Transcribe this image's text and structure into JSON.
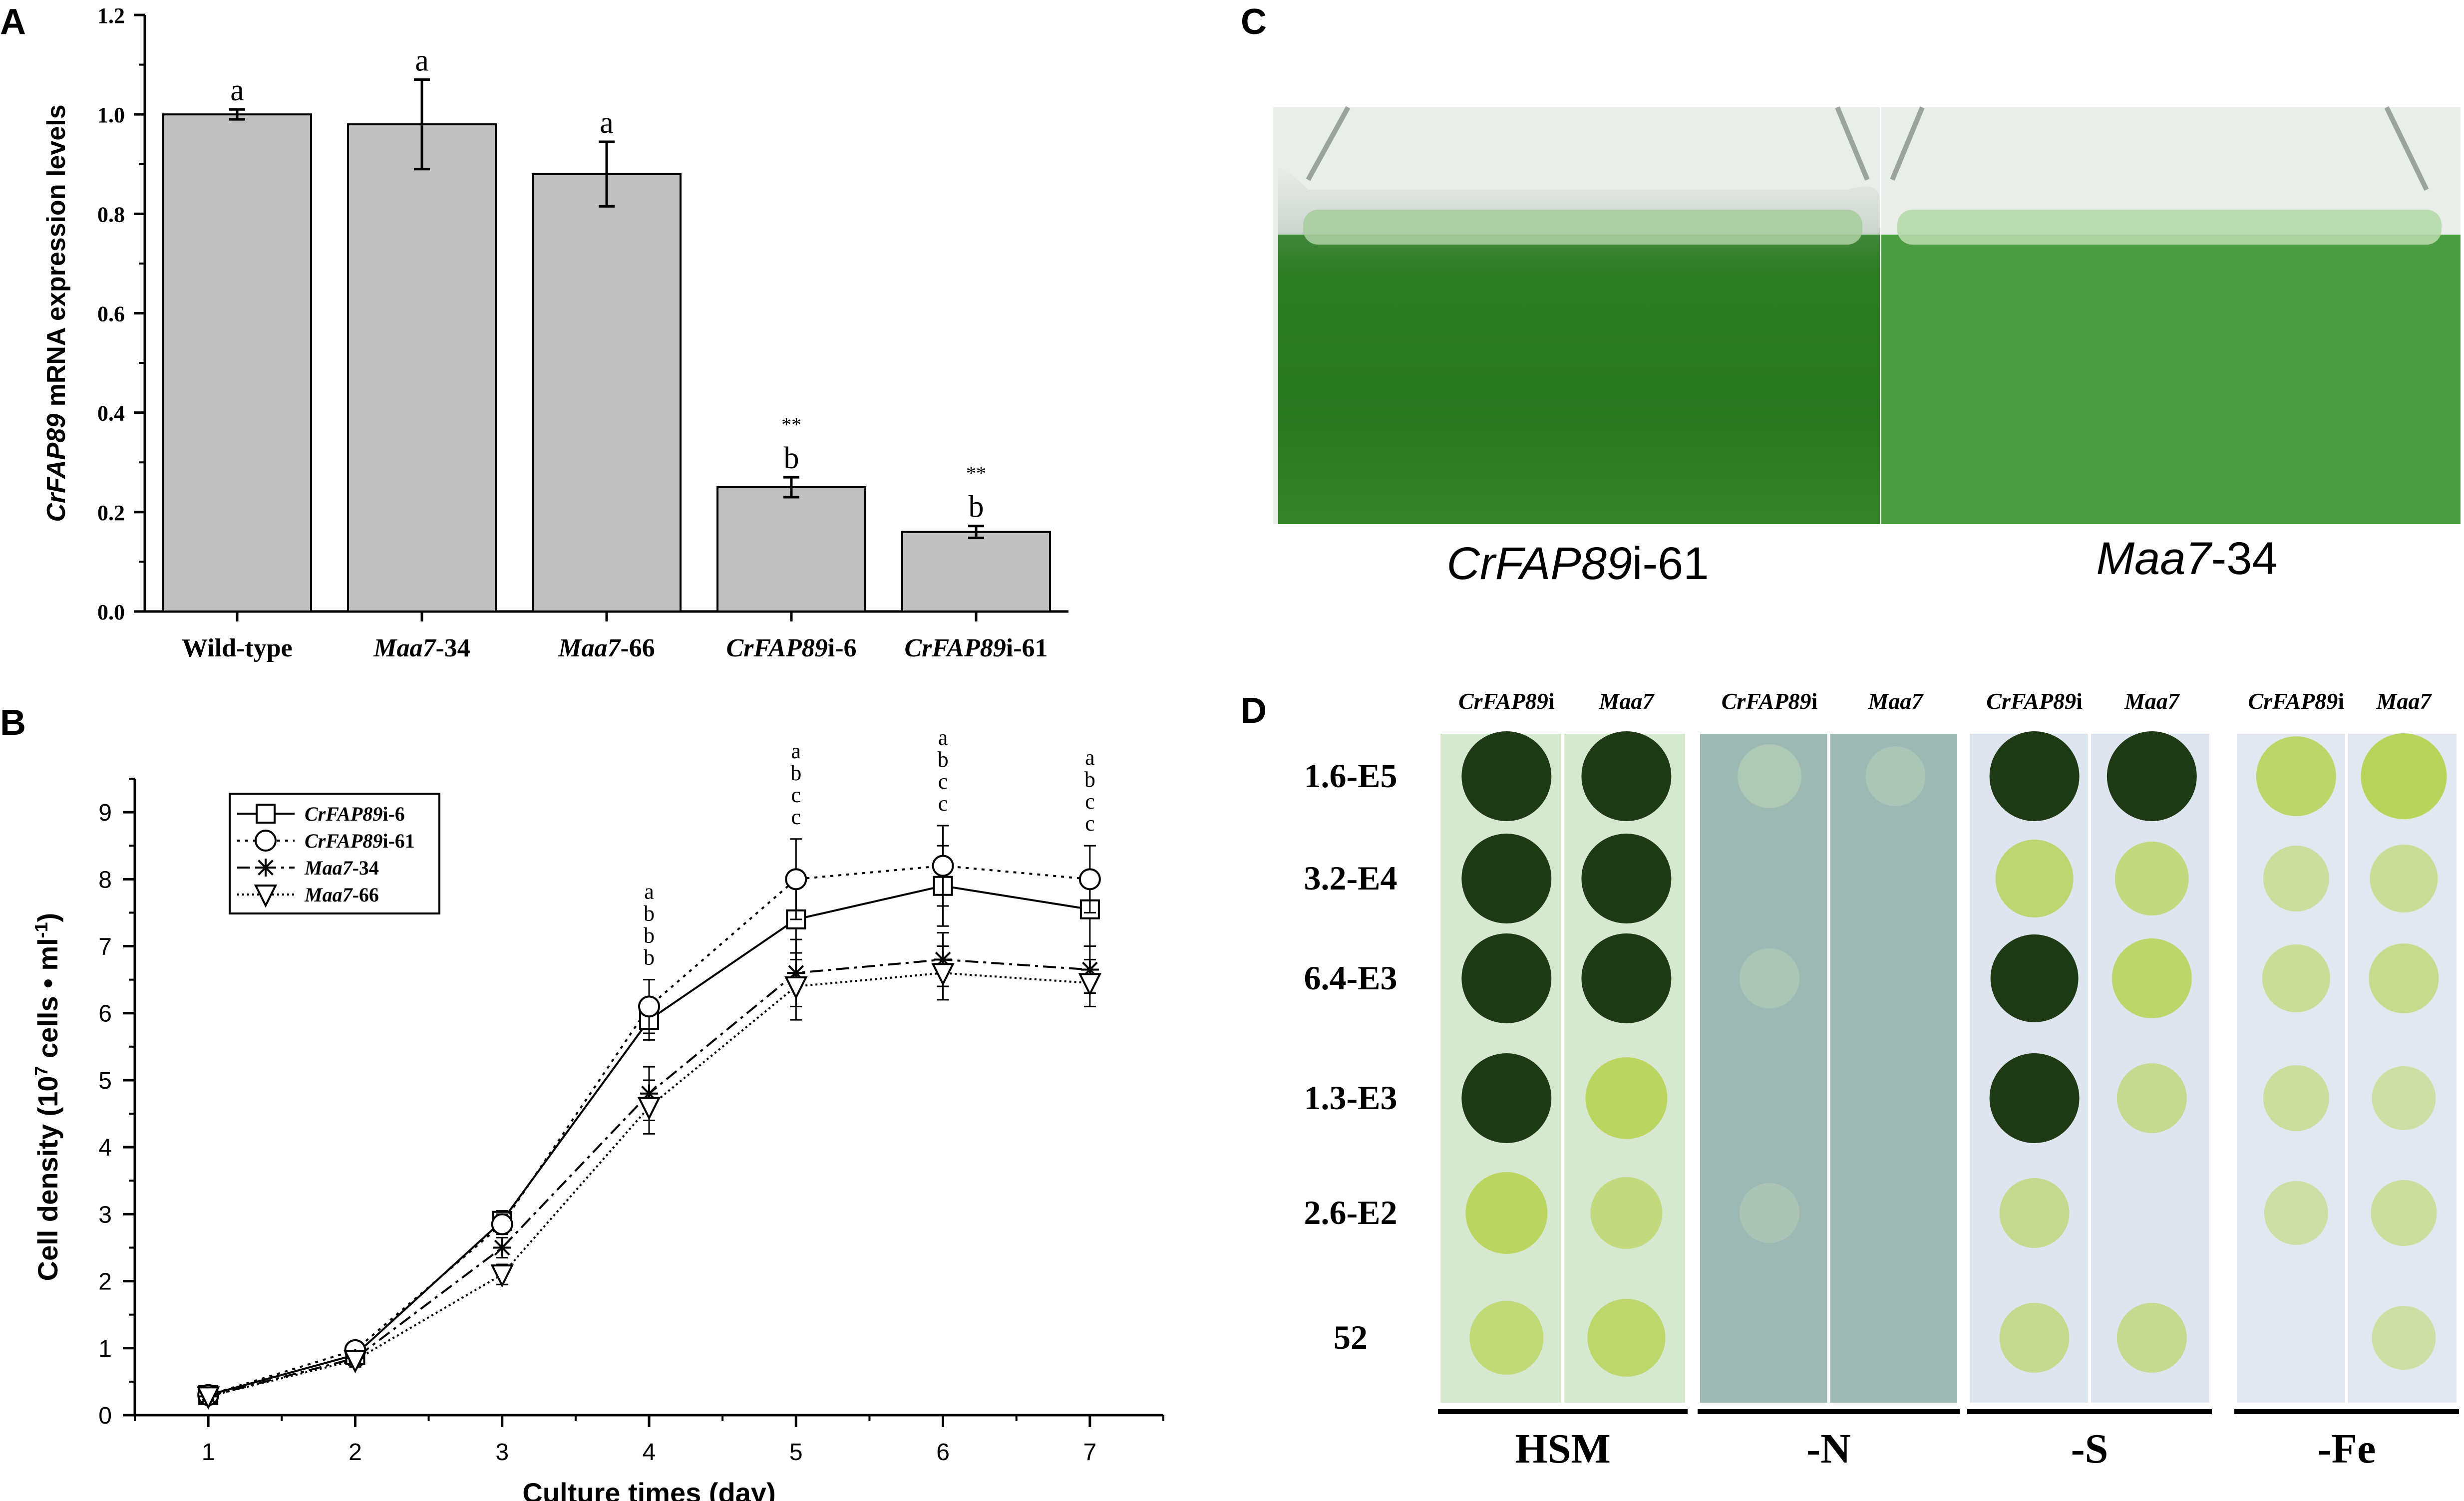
{
  "panels": {
    "a": "A",
    "b": "B",
    "c": "C",
    "d": "D"
  },
  "colors": {
    "bar_fill": "#c0c0c0",
    "axis": "#000000",
    "culture_green": "#2f8f2a",
    "plate_hsm": "#d7e8d0",
    "plate_n": "#9cb9b4",
    "plate_s": "#dfe5ef",
    "plate_fe": "#e3e8f0",
    "colony_dark": "#1d3a14",
    "colony_light": "#b9d45a"
  },
  "chart_data": [
    {
      "type": "bar",
      "panel": "A",
      "categories": [
        "Wild-type",
        "Maa7-34",
        "Maa7-66",
        "CrFAP89i-6",
        "CrFAP89i-61"
      ],
      "values": [
        1.0,
        0.98,
        0.88,
        0.25,
        0.16
      ],
      "errors": [
        0.01,
        0.09,
        0.065,
        0.02,
        0.012
      ],
      "letters": [
        "a",
        "a",
        "a",
        "b",
        "b"
      ],
      "stars": [
        "",
        "",
        "",
        "**",
        "**"
      ],
      "ylabel_italic": "CrFAP89",
      "ylabel_rest": " mRNA expression levels",
      "ylim": [
        0,
        1.2
      ],
      "yticks": [
        "0.0",
        "0.2",
        "0.4",
        "0.6",
        "0.8",
        "1.0",
        "1.2"
      ],
      "tick_labels": [
        {
          "it": "",
          "rest": "Wild-type"
        },
        {
          "it": "Maa7",
          "rest": "-34"
        },
        {
          "it": "Maa7",
          "rest": "-66"
        },
        {
          "it": "CrFAP89",
          "rest": "i-6"
        },
        {
          "it": "CrFAP89",
          "rest": "i-61"
        }
      ]
    },
    {
      "type": "line",
      "panel": "B",
      "x": [
        1,
        2,
        3,
        4,
        5,
        6,
        7
      ],
      "xlabel": "Culture times (day)",
      "ylabel": "Cell density (10",
      "ylabel_sup1": "7",
      "ylabel_mid": " cells • ml",
      "ylabel_sup2": "-1",
      "ylabel_end": ")",
      "xlim": [
        0.5,
        7.5
      ],
      "ylim": [
        0,
        9.5
      ],
      "yticks": [
        "0",
        "1",
        "2",
        "3",
        "4",
        "5",
        "6",
        "7",
        "8",
        "9"
      ],
      "xticks": [
        "1",
        "2",
        "3",
        "4",
        "5",
        "6",
        "7"
      ],
      "legend_position": "top-left",
      "series": [
        {
          "name_it": "CrFAP89",
          "name_rest": "i-6",
          "marker": "square",
          "dash": "solid",
          "values": [
            0.3,
            0.9,
            2.9,
            5.9,
            7.4,
            7.9,
            7.55
          ],
          "errors": [
            0.05,
            0.1,
            0.15,
            0.3,
            0.6,
            0.6,
            0.55
          ]
        },
        {
          "name_it": "CrFAP89",
          "name_rest": "i-61",
          "marker": "circle",
          "dash": "dotted",
          "values": [
            0.3,
            0.97,
            2.85,
            6.1,
            8.0,
            8.2,
            8.0
          ],
          "errors": [
            0.05,
            0.1,
            0.15,
            0.4,
            0.6,
            0.6,
            0.5
          ]
        },
        {
          "name_it": "Maa7",
          "name_rest": "-34",
          "marker": "star",
          "dash": "dashdot",
          "values": [
            0.28,
            0.85,
            2.5,
            4.8,
            6.6,
            6.8,
            6.65
          ],
          "errors": [
            0.05,
            0.1,
            0.15,
            0.4,
            0.5,
            0.4,
            0.35
          ]
        },
        {
          "name_it": "Maa7",
          "name_rest": "-66",
          "marker": "triangle-down",
          "dash": "dot-fine",
          "values": [
            0.28,
            0.82,
            2.1,
            4.6,
            6.4,
            6.6,
            6.45
          ],
          "errors": [
            0.05,
            0.1,
            0.15,
            0.4,
            0.5,
            0.4,
            0.35
          ]
        }
      ],
      "annotations": [
        {
          "x": 4,
          "letters": [
            "a",
            "b",
            "b",
            "b"
          ]
        },
        {
          "x": 5,
          "letters": [
            "a",
            "b",
            "c",
            "c"
          ]
        },
        {
          "x": 6,
          "letters": [
            "a",
            "b",
            "c",
            "c"
          ]
        },
        {
          "x": 7,
          "letters": [
            "a",
            "b",
            "c",
            "c"
          ]
        }
      ]
    }
  ],
  "panel_c": {
    "left_it": "CrFAP89",
    "left_rest": "i-61",
    "right_it": "Maa7",
    "right_rest": "-34"
  },
  "panel_d": {
    "column_headers": [
      "CrFAP89",
      "i",
      "Maa7"
    ],
    "headers": [
      {
        "a_it": "CrFAP89",
        "a_rest": "i",
        "b_it": "Maa7"
      },
      {
        "a_it": "CrFAP89",
        "a_rest": "i",
        "b_it": "Maa7"
      },
      {
        "a_it": "CrFAP89",
        "a_rest": "i",
        "b_it": "Maa7"
      },
      {
        "a_it": "CrFAP89",
        "a_rest": "i",
        "b_it": "Maa7"
      }
    ],
    "row_labels": [
      "1.6-E5",
      "3.2-E4",
      "6.4-E3",
      "1.3-E3",
      "2.6-E2",
      "52"
    ],
    "conditions": [
      "HSM",
      "-N",
      "-S",
      "-Fe"
    ]
  }
}
